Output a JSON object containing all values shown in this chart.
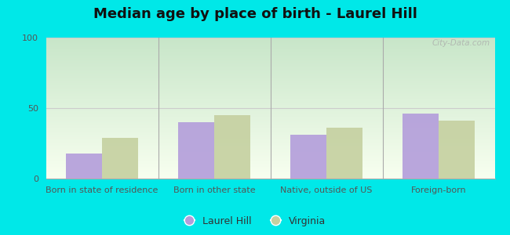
{
  "title": "Median age by place of birth - Laurel Hill",
  "categories": [
    "Born in state of residence",
    "Born in other state",
    "Native, outside of US",
    "Foreign-born"
  ],
  "laurel_hill": [
    18,
    40,
    31,
    46
  ],
  "virginia": [
    29,
    45,
    36,
    41
  ],
  "laurel_hill_color": "#b39ddb",
  "virginia_color": "#c5d0a0",
  "ylim": [
    0,
    100
  ],
  "yticks": [
    0,
    50,
    100
  ],
  "bg_top": "#c8e6c9",
  "bg_bottom": "#f8fff0",
  "outer_bg": "#00e8e8",
  "bar_width": 0.32,
  "legend_laurel": "Laurel Hill",
  "legend_virginia": "Virginia",
  "watermark": "City-Data.com",
  "title_fontsize": 13,
  "tick_fontsize": 8,
  "legend_fontsize": 9
}
